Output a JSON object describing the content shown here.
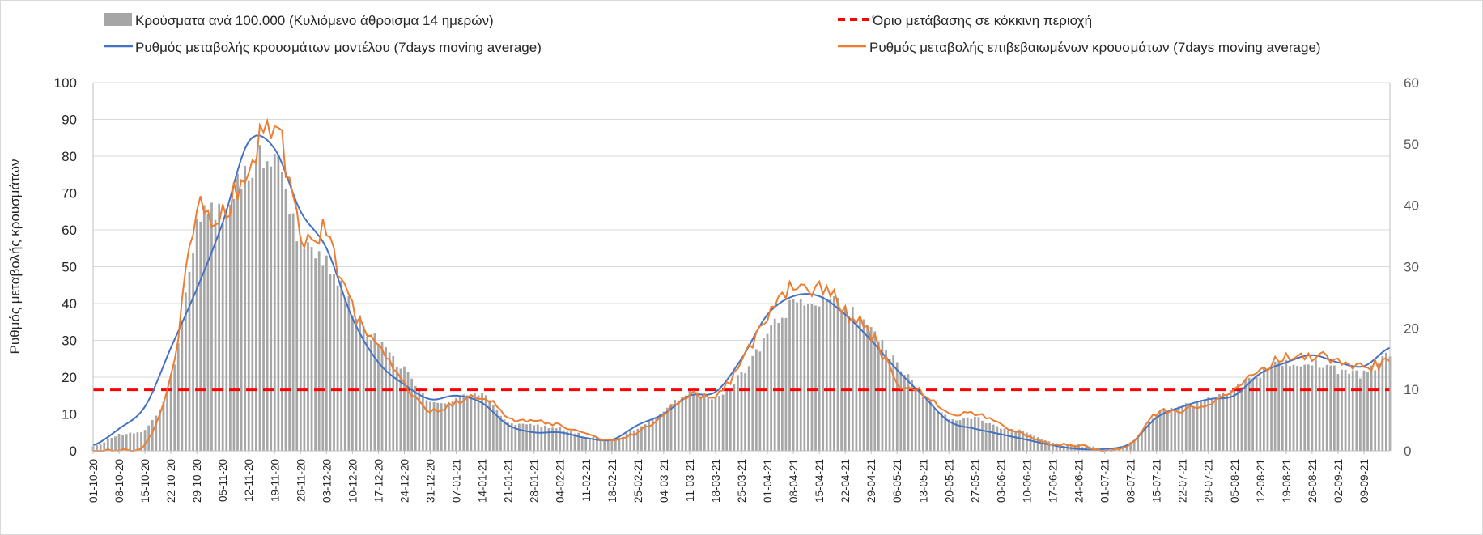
{
  "chart_data": {
    "type": "bar+line",
    "title": "",
    "ylabel": "Ρυθμός μεταβολής κρουσμάτων",
    "y2label": "",
    "ylim": [
      0,
      100
    ],
    "y2lim": [
      0,
      60
    ],
    "yticks": [
      "0",
      "10",
      "20",
      "30",
      "40",
      "50",
      "60",
      "70",
      "80",
      "90",
      "100"
    ],
    "y2ticks": [
      "0",
      "10",
      "20",
      "30",
      "40",
      "50",
      "60"
    ],
    "xtick_labels": [
      "01-10-20",
      "08-10-20",
      "15-10-20",
      "22-10-20",
      "29-10-20",
      "05-11-20",
      "12-11-20",
      "19-11-20",
      "26-11-20",
      "03-12-20",
      "10-12-20",
      "17-12-20",
      "24-12-20",
      "31-12-20",
      "07-01-21",
      "14-01-21",
      "21-01-21",
      "28-01-21",
      "04-02-21",
      "11-02-21",
      "18-02-21",
      "25-02-21",
      "04-03-21",
      "11-03-21",
      "18-03-21",
      "25-03-21",
      "01-04-21",
      "08-04-21",
      "15-04-21",
      "22-04-21",
      "29-04-21",
      "06-05-21",
      "13-05-21",
      "20-05-21",
      "27-05-21",
      "03-06-21",
      "10-06-21",
      "17-06-21",
      "24-06-21",
      "01-07-21",
      "08-07-21",
      "15-07-21",
      "22-07-21",
      "29-07-21",
      "05-08-21",
      "12-08-21",
      "19-08-21",
      "26-08-21",
      "02-09-21",
      "09-09-21"
    ],
    "legend": {
      "bars": "Κρούσματα ανά 100.000 (Κυλιόμενο άθροισμα 14 ημερών)",
      "threshold": "Όριο μετάβασης σε κόκκινη περιοχή",
      "model": "Ρυθμός μεταβολής κρουσμάτων μοντέλου (7days moving average)",
      "confirmed": "Ρυθμός μεταβολής επιβεβαιωμένων κρουσμάτων (7days moving average)"
    },
    "threshold_value_right_axis": 10,
    "series": [
      {
        "name": "Κρούσματα ανά 100.000 (Κυλιόμενο άθροισμα 14 ημερών)",
        "kind": "bar",
        "axis": "left",
        "color": "#a6a6a6",
        "frequency": "daily",
        "knots_by_week": [
          1,
          4.5,
          6,
          20,
          60,
          66,
          76,
          81,
          57,
          52,
          38,
          29,
          22,
          13,
          14,
          15,
          8,
          7,
          6,
          4,
          3,
          6,
          11,
          16,
          15,
          21,
          31,
          40,
          41,
          39,
          32,
          24,
          15,
          9,
          9,
          6,
          5,
          2,
          1.5,
          0.5,
          2,
          10,
          12,
          14,
          17,
          21,
          24,
          24,
          22,
          21,
          26
        ]
      },
      {
        "name": "Ρυθμός μεταβολής κρουσμάτων μοντέλου (7days moving average)",
        "kind": "line",
        "axis": "left",
        "color": "#4472c4",
        "knots_by_week": [
          1.5,
          6,
          12,
          28,
          44,
          62,
          84,
          82,
          65,
          55,
          36,
          24,
          18,
          14,
          15,
          13,
          7,
          5,
          5,
          3.5,
          3,
          7,
          10,
          15,
          16,
          25,
          37,
          42,
          42,
          37,
          30,
          22,
          15,
          8,
          6,
          4.5,
          3,
          1.5,
          0.5,
          0.5,
          2,
          9,
          12,
          14,
          15,
          21,
          24,
          26,
          24,
          23,
          28
        ]
      },
      {
        "name": "Ρυθμός μεταβολής επιβεβαιωμένων κρουσμάτων (7days moving average)",
        "kind": "line",
        "axis": "left",
        "color": "#ed7d31",
        "knots_by_week": [
          0,
          0,
          2,
          20,
          64,
          63,
          78,
          90,
          60,
          58,
          38,
          28,
          18,
          11,
          13,
          15,
          9,
          8,
          7,
          4.5,
          3,
          5,
          10,
          15,
          15,
          24,
          37,
          44,
          44,
          38,
          32,
          19,
          16,
          10,
          10,
          7,
          4,
          2,
          1.5,
          0,
          2,
          10,
          11,
          13,
          16,
          22,
          25,
          26,
          25,
          23,
          24
        ]
      }
    ]
  }
}
